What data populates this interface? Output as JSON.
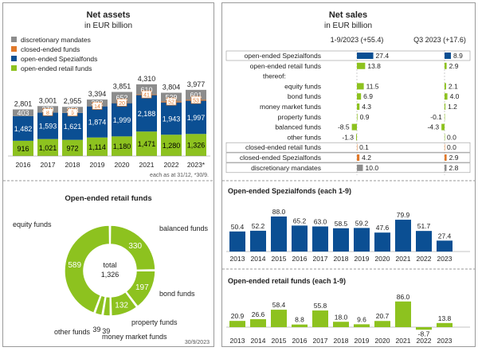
{
  "palette": {
    "grey": "#8c8c8c",
    "orange": "#e0782a",
    "blue": "#0b4f93",
    "green": "#8dc21f",
    "frame": "#9a9a9a",
    "text": "#222222"
  },
  "net_assets": {
    "title": "Net assets",
    "subtitle": "in EUR billion",
    "footnote": "each as at 31/12, *30/9."
  },
  "net_sales": {
    "title": "Net sales",
    "subtitle": "in EUR billion",
    "col1_header": "1-9/2023 (+55.4)",
    "col2_header": "Q3 2023 (+17.6)"
  },
  "retail_funds": {
    "title": "Open-ended retail funds",
    "center_label": "total",
    "center_value": "1,326",
    "date": "30/9/2023"
  },
  "spezial_chart": {
    "title": "Open-ended Spezialfonds (each 1-9)"
  },
  "retail_chart": {
    "title": "Open-ended retail funds (each 1-9)"
  },
  "chart_data": [
    {
      "type": "bar",
      "stacked": true,
      "categories": [
        "2016",
        "2017",
        "2018",
        "2019",
        "2020",
        "2021",
        "2022",
        "2023*"
      ],
      "series": [
        {
          "name": "open-ended retail funds",
          "color": "#8dc21f",
          "values": [
            916,
            1021,
            972,
            1114,
            1180,
            1471,
            1280,
            1326
          ]
        },
        {
          "name": "open-ended Spezialfonds",
          "color": "#0b4f93",
          "values": [
            1482,
            1593,
            1621,
            1874,
            1999,
            2188,
            1943,
            1997
          ]
        },
        {
          "name": "closed-ended funds",
          "color": "#e0782a",
          "values": [
            0,
            8,
            9,
            14,
            20,
            41,
            52,
            53
          ]
        },
        {
          "name": "discretionary mandates",
          "color": "#8c8c8c",
          "values": [
            403,
            379,
            353,
            392,
            652,
            610,
            529,
            601
          ]
        }
      ],
      "segment_labels": [
        [
          "916",
          "1,021",
          "972",
          "1,114",
          "1,180",
          "1,471",
          "1,280",
          "1,326"
        ],
        [
          "1,482",
          "1,593",
          "1,621",
          "1,874",
          "1,999",
          "2,188",
          "1,943",
          "1,997"
        ],
        [
          "",
          "8",
          "9",
          "14",
          "20",
          "41",
          "52",
          "53"
        ],
        [
          "403",
          "379",
          "353",
          "392",
          "652",
          "610",
          "529",
          "601"
        ]
      ],
      "totals": [
        "2,801",
        "3,001",
        "2,955",
        "3,394",
        "3,851",
        "4,310",
        "3,804",
        "3,977"
      ],
      "legend": [
        "discretionary mandates",
        "closed-ended funds",
        "open-ended Spezialfonds",
        "open-ended retail funds"
      ],
      "legend_colors": [
        "#8c8c8c",
        "#e0782a",
        "#0b4f93",
        "#8dc21f"
      ]
    },
    {
      "type": "table",
      "rows": [
        {
          "label": "open-ended Spezialfonds",
          "v1": 27.4,
          "v2": 8.9,
          "t1": "27.4",
          "t2": "8.9",
          "color": "#0b4f93",
          "boxed": true
        },
        {
          "label": "open-ended retail funds",
          "v1": 13.8,
          "v2": 2.9,
          "t1": "13.8",
          "t2": "2.9",
          "color": "#8dc21f",
          "boxed": false
        },
        {
          "label": "thereof:",
          "v1": null,
          "v2": null,
          "t1": "",
          "t2": "",
          "color": "",
          "boxed": false
        },
        {
          "label": "equity funds",
          "v1": 11.5,
          "v2": 2.1,
          "t1": "11.5",
          "t2": "2.1",
          "color": "#8dc21f",
          "boxed": false
        },
        {
          "label": "bond funds",
          "v1": 6.9,
          "v2": 4.0,
          "t1": "6.9",
          "t2": "4.0",
          "color": "#8dc21f",
          "boxed": false
        },
        {
          "label": "money market funds",
          "v1": 4.3,
          "v2": 1.2,
          "t1": "4.3",
          "t2": "1.2",
          "color": "#8dc21f",
          "boxed": false
        },
        {
          "label": "property funds",
          "v1": 0.9,
          "v2": -0.1,
          "t1": "0.9",
          "t2": "-0.1",
          "color": "#8dc21f",
          "boxed": false
        },
        {
          "label": "balanced funds",
          "v1": -8.5,
          "v2": -4.3,
          "t1": "-8.5",
          "t2": "-4.3",
          "color": "#8dc21f",
          "boxed": false
        },
        {
          "label": "other funds",
          "v1": -1.3,
          "v2": 0.0,
          "t1": "-1.3",
          "t2": "0.0",
          "color": "#8dc21f",
          "boxed": false
        },
        {
          "label": "closed-ended retail funds",
          "v1": 0.1,
          "v2": 0.0,
          "t1": "0.1",
          "t2": "0.0",
          "color": "#e0782a",
          "boxed": true
        },
        {
          "label": "closed-ended Spezialfonds",
          "v1": 4.2,
          "v2": 2.9,
          "t1": "4.2",
          "t2": "2.9",
          "color": "#e0782a",
          "boxed": true
        },
        {
          "label": "discretionary mandates",
          "v1": 10.0,
          "v2": 2.8,
          "t1": "10.0",
          "t2": "2.8",
          "color": "#8c8c8c",
          "boxed": true
        }
      ]
    },
    {
      "type": "pie",
      "donut": true,
      "slices": [
        {
          "name": "equity funds",
          "value": 589,
          "label": "589"
        },
        {
          "name": "balanced funds",
          "value": 330,
          "label": "330"
        },
        {
          "name": "bond funds",
          "value": 197,
          "label": "197"
        },
        {
          "name": "property funds",
          "value": 132,
          "label": "132"
        },
        {
          "name": "money market funds",
          "value": 39,
          "label": "39"
        },
        {
          "name": "other funds",
          "value": 39,
          "label": "39"
        }
      ],
      "color": "#8dc21f"
    },
    {
      "type": "bar",
      "title": "Open-ended Spezialfonds (each 1-9)",
      "categories": [
        "2013",
        "2014",
        "2015",
        "2016",
        "2017",
        "2018",
        "2019",
        "2020",
        "2021",
        "2022",
        "2023"
      ],
      "values": [
        50.4,
        52.2,
        88.0,
        65.2,
        63.0,
        58.5,
        59.2,
        47.6,
        79.9,
        51.7,
        27.4
      ],
      "labels": [
        "50.4",
        "52.2",
        "88.0",
        "65.2",
        "63.0",
        "58.5",
        "59.2",
        "47.6",
        "79.9",
        "51.7",
        "27.4"
      ],
      "color": "#0b4f93"
    },
    {
      "type": "bar",
      "title": "Open-ended retail funds (each 1-9)",
      "categories": [
        "2013",
        "2014",
        "2015",
        "2016",
        "2017",
        "2018",
        "2019",
        "2020",
        "2021",
        "2022",
        "2023"
      ],
      "values": [
        20.9,
        26.6,
        58.4,
        8.8,
        55.8,
        18.0,
        9.6,
        20.7,
        86.0,
        -8.7,
        13.8
      ],
      "labels": [
        "20.9",
        "26.6",
        "58.4",
        "8.8",
        "55.8",
        "18.0",
        "9.6",
        "20.7",
        "86.0",
        "-8.7",
        "13.8"
      ],
      "color": "#8dc21f"
    }
  ]
}
